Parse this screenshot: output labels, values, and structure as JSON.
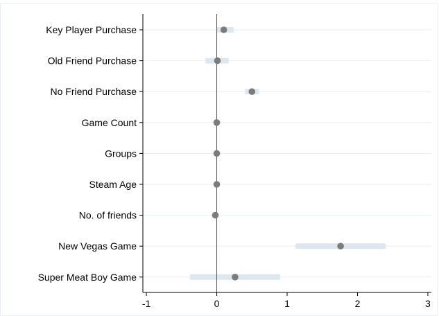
{
  "chart_data": {
    "type": "coefficient-plot",
    "title": "",
    "xlabel": "",
    "ylabel": "",
    "xlim": [
      -1.05,
      3.05
    ],
    "xticks": [
      -1,
      0,
      1,
      2,
      3
    ],
    "xtick_labels": [
      "-1",
      "0",
      "1",
      "2",
      "3"
    ],
    "reference_line_x": 0,
    "grid": true,
    "colors": {
      "point": "#7c7c7c",
      "interval": "#dce7ef",
      "reference": "#555555"
    },
    "series": [
      {
        "label": "Key Player Purchase",
        "estimate": 0.1,
        "ci": [
          0.0,
          0.24
        ]
      },
      {
        "label": "Old Friend Purchase",
        "estimate": 0.01,
        "ci": [
          -0.16,
          0.17
        ]
      },
      {
        "label": "No Friend Purchase",
        "estimate": 0.5,
        "ci": [
          0.4,
          0.6
        ]
      },
      {
        "label": "Game Count",
        "estimate": 0.0,
        "ci": [
          0.0,
          0.0
        ]
      },
      {
        "label": "Groups",
        "estimate": 0.0,
        "ci": [
          0.0,
          0.0
        ]
      },
      {
        "label": "Steam Age",
        "estimate": 0.0,
        "ci": [
          0.0,
          0.0
        ]
      },
      {
        "label": "No. of friends",
        "estimate": -0.02,
        "ci": [
          -0.02,
          -0.02
        ]
      },
      {
        "label": "New Vegas Game",
        "estimate": 1.76,
        "ci": [
          1.12,
          2.4
        ]
      },
      {
        "label": "Super Meat Boy Game",
        "estimate": 0.26,
        "ci": [
          -0.38,
          0.9
        ]
      }
    ]
  }
}
